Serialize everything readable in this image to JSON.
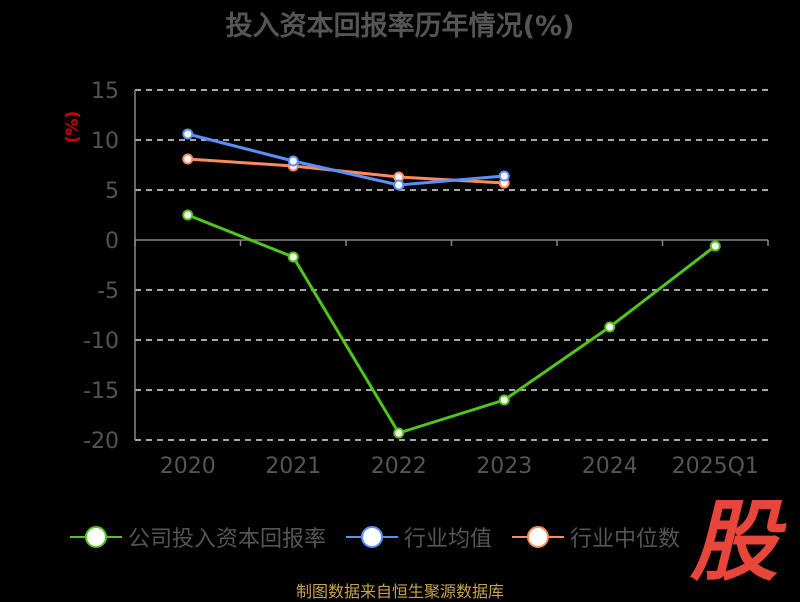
{
  "chart_data": {
    "type": "line",
    "title": "投入资本回报率历年情况(%)",
    "ylabel": "(%)",
    "categories": [
      "2020",
      "2021",
      "2022",
      "2023",
      "2024",
      "2025Q1"
    ],
    "ylim": [
      -20,
      15
    ],
    "yticks": [
      15,
      10,
      5,
      0,
      -5,
      -10,
      -15,
      -20
    ],
    "grid": true,
    "legend_position": "bottom-left",
    "series": [
      {
        "name": "公司投入资本回报率",
        "color": "#52c41a",
        "values": [
          2.5,
          -1.7,
          -19.3,
          -16.0,
          -8.7,
          -0.6
        ]
      },
      {
        "name": "行业均值",
        "color": "#5b8ff9",
        "values": [
          10.6,
          7.9,
          5.5,
          6.4,
          null,
          null
        ]
      },
      {
        "name": "行业中位数",
        "color": "#ff8a5c",
        "values": [
          8.1,
          7.4,
          6.3,
          5.7,
          null,
          null
        ]
      }
    ]
  },
  "watermark": "股",
  "source_note": "制图数据来自恒生聚源数据库",
  "colors": {
    "background": "#000000",
    "axis_text": "#555555",
    "ylabel": "#cc0000",
    "grid": "#dddddd",
    "axis": "#888888",
    "watermark": "#e8463a",
    "source": "#c8a24e"
  }
}
